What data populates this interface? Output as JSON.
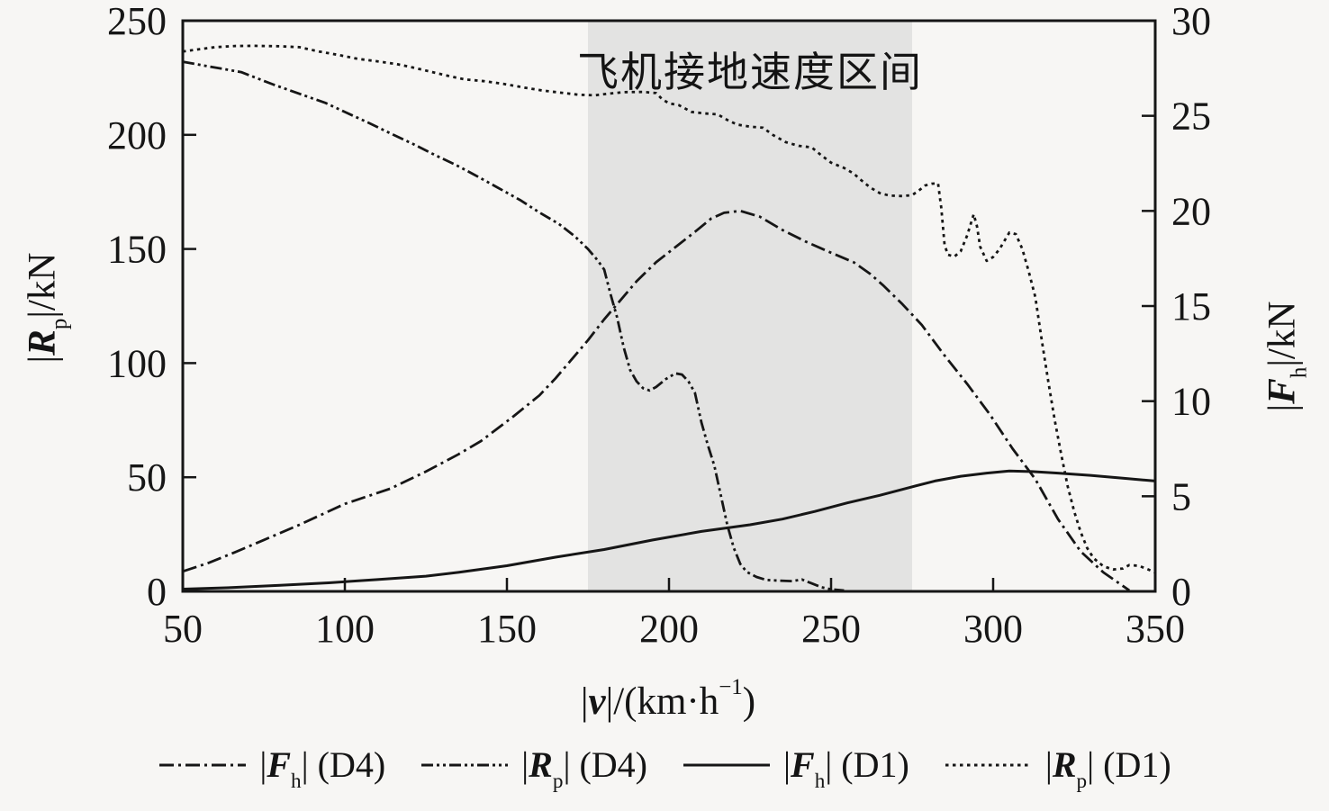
{
  "colors": {
    "ink": "#161616",
    "band": "#e3e3e2",
    "background": "#f7f6f4"
  },
  "title": "飞机接地速度区间",
  "axis_labels": {
    "x": {
      "pre": "|",
      "sym": "v",
      "mid": "|/(km·h",
      "sup": "−1",
      "close": ")",
      "text": "|v|/(km·h−1)"
    },
    "y_left": {
      "pre": "|",
      "sym": "R",
      "sub": "p",
      "post": "|/kN",
      "text": "|Rp|/kN"
    },
    "y_right": {
      "pre": "|",
      "sym": "F",
      "sub": "h",
      "post": "|/kN",
      "text": "|Fh|/kN"
    }
  },
  "legend": {
    "items": [
      {
        "pre": "|",
        "sym": "F",
        "sub": "h",
        "post": "| (D4)",
        "text": "|Fh| (D4)",
        "style": "dashdot"
      },
      {
        "pre": "|",
        "sym": "R",
        "sub": "p",
        "post": "| (D4)",
        "text": "|Rp| (D4)",
        "style": "dashdotdot"
      },
      {
        "pre": "|",
        "sym": "F",
        "sub": "h",
        "post": "| (D1)",
        "text": "|Fh| (D1)",
        "style": "solid"
      },
      {
        "pre": "|",
        "sym": "R",
        "sub": "p",
        "post": "| (D1)",
        "text": "|Rp| (D1)",
        "style": "dotted"
      }
    ]
  },
  "chart_data": {
    "type": "line",
    "title": "飞机接地速度区间",
    "band": {
      "label": "飞机接地速度区间",
      "x_start": 175,
      "x_end": 275
    },
    "x_axis": {
      "label": "|v|/(km·h−1)",
      "min": 50,
      "max": 350,
      "ticks": [
        50,
        100,
        150,
        200,
        250,
        300,
        350
      ]
    },
    "y_left_axis": {
      "label": "|Rp|/kN",
      "min": 0,
      "max": 250,
      "ticks": [
        0,
        50,
        100,
        150,
        200,
        250
      ]
    },
    "y_right_axis": {
      "label": "|Fh|/kN",
      "min": 0,
      "max": 30,
      "ticks": [
        0,
        5,
        10,
        15,
        20,
        25,
        30
      ]
    },
    "series": [
      {
        "name": "|Fh| (D4)",
        "axis": "right",
        "style": "dashdot",
        "points": [
          [
            50,
            1.05
          ],
          [
            58,
            1.5
          ],
          [
            66,
            2.05
          ],
          [
            75,
            2.7
          ],
          [
            86,
            3.5
          ],
          [
            100,
            4.6
          ],
          [
            114,
            5.4
          ],
          [
            125,
            6.3
          ],
          [
            135,
            7.2
          ],
          [
            142,
            7.9
          ],
          [
            152,
            9.2
          ],
          [
            160,
            10.3
          ],
          [
            165,
            11.2
          ],
          [
            170,
            12.2
          ],
          [
            175,
            13.2
          ],
          [
            180,
            14.3
          ],
          [
            185,
            15.3
          ],
          [
            190,
            16.3
          ],
          [
            196,
            17.3
          ],
          [
            202,
            18.1
          ],
          [
            208,
            18.9
          ],
          [
            213,
            19.6
          ],
          [
            217,
            19.9
          ],
          [
            222,
            20.0
          ],
          [
            228,
            19.7
          ],
          [
            235,
            19.0
          ],
          [
            242,
            18.4
          ],
          [
            250,
            17.8
          ],
          [
            257,
            17.3
          ],
          [
            262,
            16.7
          ],
          [
            266,
            16.1
          ],
          [
            272,
            15.1
          ],
          [
            278,
            14.0
          ],
          [
            285,
            12.4
          ],
          [
            292,
            10.9
          ],
          [
            299,
            9.3
          ],
          [
            306,
            7.5
          ],
          [
            313,
            5.9
          ],
          [
            320,
            3.8
          ],
          [
            327,
            2.1
          ],
          [
            334,
            1.0
          ],
          [
            342,
            0.05
          ]
        ]
      },
      {
        "name": "|Rp| (D4)",
        "axis": "left",
        "style": "dashdotdot",
        "points": [
          [
            50,
            232
          ],
          [
            56,
            230.5
          ],
          [
            62,
            229
          ],
          [
            68,
            227.5
          ],
          [
            78,
            222
          ],
          [
            86,
            218
          ],
          [
            94,
            214
          ],
          [
            100,
            210
          ],
          [
            107,
            205.5
          ],
          [
            115,
            200
          ],
          [
            121,
            196
          ],
          [
            128,
            191
          ],
          [
            134,
            187
          ],
          [
            140,
            182.5
          ],
          [
            147,
            177
          ],
          [
            154,
            171.5
          ],
          [
            160,
            166
          ],
          [
            166,
            161
          ],
          [
            171,
            155.5
          ],
          [
            175,
            150
          ],
          [
            178,
            145
          ],
          [
            180,
            141
          ],
          [
            182,
            130
          ],
          [
            184,
            120
          ],
          [
            186,
            107
          ],
          [
            188,
            97
          ],
          [
            190,
            92
          ],
          [
            192,
            89
          ],
          [
            194,
            88
          ],
          [
            196,
            89.5
          ],
          [
            199,
            93
          ],
          [
            202,
            95.5
          ],
          [
            204,
            95
          ],
          [
            206,
            92
          ],
          [
            208,
            87
          ],
          [
            210,
            74
          ],
          [
            212,
            64
          ],
          [
            214,
            55
          ],
          [
            216,
            42
          ],
          [
            218,
            29
          ],
          [
            220,
            19
          ],
          [
            222,
            12
          ],
          [
            224,
            8.5
          ],
          [
            227,
            6.3
          ],
          [
            230,
            5
          ],
          [
            234,
            4.7
          ],
          [
            238,
            4.5
          ],
          [
            241,
            5.2
          ],
          [
            244,
            3.5
          ],
          [
            247,
            1.8
          ],
          [
            250,
            0.9
          ],
          [
            254,
            0.4
          ]
        ]
      },
      {
        "name": "|Fh| (D1)",
        "axis": "right",
        "style": "solid",
        "points": [
          [
            50,
            0.12
          ],
          [
            65,
            0.2
          ],
          [
            80,
            0.32
          ],
          [
            95,
            0.45
          ],
          [
            110,
            0.62
          ],
          [
            125,
            0.8
          ],
          [
            135,
            1.0
          ],
          [
            150,
            1.35
          ],
          [
            165,
            1.8
          ],
          [
            180,
            2.2
          ],
          [
            195,
            2.7
          ],
          [
            210,
            3.15
          ],
          [
            225,
            3.5
          ],
          [
            235,
            3.8
          ],
          [
            245,
            4.2
          ],
          [
            255,
            4.65
          ],
          [
            265,
            5.05
          ],
          [
            274,
            5.45
          ],
          [
            282,
            5.8
          ],
          [
            290,
            6.05
          ],
          [
            298,
            6.22
          ],
          [
            305,
            6.33
          ],
          [
            312,
            6.3
          ],
          [
            320,
            6.22
          ],
          [
            330,
            6.1
          ],
          [
            340,
            5.95
          ],
          [
            350,
            5.8
          ]
        ]
      },
      {
        "name": "|Rp| (D1)",
        "axis": "left",
        "style": "dotted",
        "points": [
          [
            50,
            236.5
          ],
          [
            55,
            237.5
          ],
          [
            60,
            238.4
          ],
          [
            66,
            238.9
          ],
          [
            72,
            239
          ],
          [
            80,
            238.8
          ],
          [
            86,
            238.4
          ],
          [
            92,
            236.5
          ],
          [
            98,
            235
          ],
          [
            104,
            233.3
          ],
          [
            110,
            232.2
          ],
          [
            116,
            231
          ],
          [
            121,
            229.5
          ],
          [
            127,
            227.5
          ],
          [
            132,
            225.8
          ],
          [
            137,
            224.3
          ],
          [
            143,
            223.5
          ],
          [
            149,
            222.3
          ],
          [
            155,
            220.8
          ],
          [
            161,
            219.4
          ],
          [
            167,
            218.4
          ],
          [
            172,
            217.6
          ],
          [
            177,
            217.3
          ],
          [
            181,
            218
          ],
          [
            186,
            218.7
          ],
          [
            192,
            218.8
          ],
          [
            196,
            218.3
          ],
          [
            198,
            215.5
          ],
          [
            200,
            213.8
          ],
          [
            203,
            213
          ],
          [
            205,
            211.5
          ],
          [
            207,
            210
          ],
          [
            211,
            209.4
          ],
          [
            215,
            209
          ],
          [
            218,
            206.5
          ],
          [
            221,
            204.5
          ],
          [
            225,
            203.6
          ],
          [
            229,
            203.1
          ],
          [
            232,
            200
          ],
          [
            236,
            196.8
          ],
          [
            240,
            195.2
          ],
          [
            244,
            194.5
          ],
          [
            247,
            191
          ],
          [
            250,
            187.8
          ],
          [
            254,
            185.5
          ],
          [
            257,
            183
          ],
          [
            259,
            180.5
          ],
          [
            262,
            177
          ],
          [
            265,
            174.5
          ],
          [
            268,
            173.4
          ],
          [
            272,
            173.2
          ],
          [
            275,
            173.6
          ],
          [
            277,
            175.5
          ],
          [
            279,
            177.8
          ],
          [
            281,
            178.6
          ],
          [
            283,
            178.8
          ],
          [
            284,
            168
          ],
          [
            285,
            152
          ],
          [
            286,
            147.5
          ],
          [
            288,
            146.6
          ],
          [
            290,
            149
          ],
          [
            292,
            156
          ],
          [
            294,
            165.2
          ],
          [
            295,
            160
          ],
          [
            296,
            151
          ],
          [
            298,
            144.8
          ],
          [
            300,
            146.5
          ],
          [
            302,
            150
          ],
          [
            305,
            157.2
          ],
          [
            307,
            156.5
          ],
          [
            309,
            150
          ],
          [
            311,
            140
          ],
          [
            313,
            129
          ],
          [
            315,
            110
          ],
          [
            317,
            92
          ],
          [
            319,
            75
          ],
          [
            321,
            60
          ],
          [
            323,
            46
          ],
          [
            325,
            35
          ],
          [
            327,
            26
          ],
          [
            329,
            19
          ],
          [
            331,
            14.5
          ],
          [
            334,
            11
          ],
          [
            337,
            9.6
          ],
          [
            340,
            10
          ],
          [
            342,
            11.5
          ],
          [
            345,
            11.2
          ],
          [
            348,
            9.5
          ],
          [
            350,
            8.2
          ]
        ]
      }
    ]
  }
}
